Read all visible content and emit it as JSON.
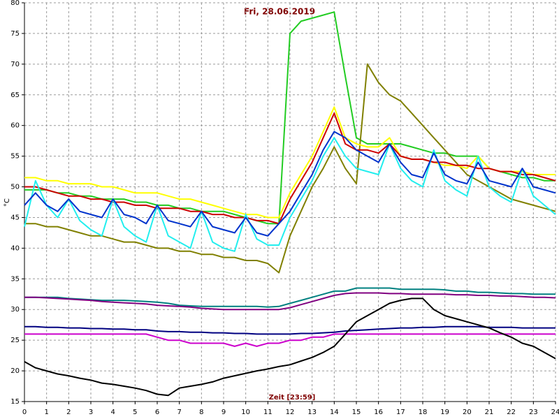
{
  "chart_data": {
    "type": "line",
    "title": "Fri, 28.06.2019",
    "y_label": "°C",
    "x_label": "Zeit [23:59]",
    "grid": true,
    "xlim": [
      0,
      24
    ],
    "xticks": [
      0,
      1,
      2,
      3,
      4,
      5,
      6,
      7,
      8,
      9,
      10,
      11,
      12,
      13,
      14,
      15,
      16,
      17,
      18,
      19,
      20,
      21,
      22,
      23,
      24
    ],
    "ylim": [
      15,
      80
    ],
    "yticks": [
      15,
      20,
      25,
      30,
      35,
      40,
      45,
      50,
      55,
      60,
      65,
      70,
      75,
      80
    ],
    "x": [
      0,
      0.5,
      1,
      1.5,
      2,
      2.5,
      3,
      3.5,
      4,
      4.5,
      5,
      5.5,
      6,
      6.5,
      7,
      7.5,
      8,
      8.5,
      9,
      9.5,
      10,
      10.5,
      11,
      11.5,
      12,
      12.5,
      13,
      13.5,
      14,
      14.5,
      15,
      15.5,
      16,
      16.5,
      17,
      17.5,
      18,
      18.5,
      19,
      19.5,
      20,
      20.5,
      21,
      21.5,
      22,
      22.5,
      23,
      23.5,
      24
    ],
    "series": [
      {
        "color": "#22cc22",
        "values": [
          49.5,
          49.5,
          49.5,
          49,
          49,
          48.5,
          48.5,
          48,
          48,
          48,
          47.5,
          47.5,
          47,
          47,
          46.5,
          46.5,
          46,
          46,
          46,
          45.5,
          45,
          44.5,
          44,
          44,
          75,
          77,
          77.5,
          78,
          78.5,
          68,
          58,
          57,
          57,
          57,
          57,
          56.5,
          56,
          55.5,
          55.5,
          55,
          55,
          55,
          53,
          52.5,
          52,
          51.5,
          51.5,
          51,
          51
        ]
      },
      {
        "color": "#808000",
        "values": [
          44,
          44,
          43.5,
          43.5,
          43,
          42.5,
          42,
          42,
          41.5,
          41,
          41,
          40.5,
          40,
          40,
          39.5,
          39.5,
          39,
          39,
          38.5,
          38.5,
          38,
          38,
          37.5,
          36,
          42,
          46,
          50,
          53,
          56.5,
          53,
          50.5,
          70,
          67,
          65,
          64,
          62,
          60,
          58,
          56,
          54,
          52,
          51,
          50,
          49,
          48,
          47.5,
          47,
          46.5,
          46
        ]
      },
      {
        "color": "#ffff00",
        "values": [
          51.5,
          51.5,
          51,
          51,
          50.5,
          50.5,
          50.5,
          50,
          50,
          49.5,
          49,
          49,
          49,
          48.5,
          48,
          48,
          47.5,
          47,
          46.5,
          46,
          45.5,
          45.5,
          45,
          45,
          49,
          52,
          55,
          59,
          63,
          58,
          57,
          56.5,
          56.5,
          58,
          55,
          54.5,
          54.5,
          54,
          53.5,
          53.5,
          53,
          55,
          53,
          52.5,
          52.5,
          52.5,
          52,
          52,
          52
        ]
      },
      {
        "color": "#cc0000",
        "values": [
          50,
          50,
          49.5,
          49,
          48.5,
          48.5,
          48,
          48,
          47.5,
          47.5,
          47,
          47,
          46.5,
          46.5,
          46.5,
          46,
          46,
          45.5,
          45.5,
          45,
          45,
          44.5,
          44.5,
          44,
          48,
          51,
          54,
          58,
          62,
          57,
          56,
          56,
          55.5,
          57,
          55,
          54.5,
          54.5,
          54,
          54,
          53.5,
          53.5,
          53,
          53,
          52.5,
          52.5,
          52,
          52,
          51.5,
          51
        ]
      },
      {
        "color": "#22eeee",
        "values": [
          43.5,
          51,
          47,
          45,
          48,
          44.5,
          43,
          42,
          48,
          43.5,
          42,
          41,
          47,
          42,
          41,
          40,
          46,
          41,
          40,
          39.5,
          45.5,
          41.5,
          40.5,
          40.5,
          45,
          48,
          51,
          55,
          58,
          55,
          53,
          52.5,
          52,
          57,
          53,
          51,
          50,
          56,
          51,
          49.5,
          48.5,
          55,
          50,
          48.5,
          47.5,
          53,
          48.5,
          47,
          45.5
        ]
      },
      {
        "color": "#0033cc",
        "values": [
          47,
          49,
          47,
          46,
          48,
          46,
          45.5,
          45,
          48,
          45.5,
          45,
          44,
          47,
          44.5,
          44,
          43.5,
          46,
          43.5,
          43,
          42.5,
          45,
          42.5,
          42,
          44,
          46,
          49,
          52,
          56,
          59,
          58,
          56,
          55,
          54,
          57,
          54,
          52,
          51.5,
          55.5,
          52,
          51,
          50.5,
          54,
          51,
          50.5,
          50,
          53,
          50,
          49.5,
          49
        ]
      },
      {
        "color": "#008080",
        "values": [
          32,
          32,
          32,
          32,
          31.8,
          31.7,
          31.6,
          31.5,
          31.5,
          31.5,
          31.4,
          31.3,
          31.2,
          31,
          30.7,
          30.6,
          30.5,
          30.5,
          30.5,
          30.5,
          30.5,
          30.5,
          30.4,
          30.5,
          31,
          31.5,
          32,
          32.5,
          33,
          33,
          33.5,
          33.5,
          33.5,
          33.5,
          33.3,
          33.3,
          33.3,
          33.3,
          33.2,
          33,
          33,
          32.8,
          32.8,
          32.7,
          32.6,
          32.6,
          32.5,
          32.5,
          32.5
        ]
      },
      {
        "color": "#800080",
        "values": [
          32,
          32,
          31.9,
          31.8,
          31.7,
          31.6,
          31.5,
          31.3,
          31.2,
          31.1,
          31,
          30.9,
          30.7,
          30.6,
          30.5,
          30.4,
          30.2,
          30.1,
          30,
          30,
          30,
          30,
          30,
          30,
          30.3,
          30.8,
          31.3,
          31.8,
          32.3,
          32.6,
          32.7,
          32.7,
          32.7,
          32.6,
          32.6,
          32.5,
          32.5,
          32.5,
          32.5,
          32.4,
          32.4,
          32.3,
          32.3,
          32.2,
          32.2,
          32.1,
          32,
          32,
          31.9
        ]
      },
      {
        "color": "#000080",
        "values": [
          27.2,
          27.2,
          27.1,
          27.1,
          27,
          27,
          26.9,
          26.9,
          26.8,
          26.8,
          26.7,
          26.7,
          26.5,
          26.4,
          26.4,
          26.3,
          26.3,
          26.2,
          26.2,
          26.1,
          26.1,
          26,
          26,
          26,
          26,
          26.1,
          26.1,
          26.2,
          26.3,
          26.5,
          26.6,
          26.7,
          26.8,
          26.9,
          27,
          27,
          27.1,
          27.1,
          27.2,
          27.2,
          27.2,
          27.2,
          27.1,
          27.1,
          27.1,
          27,
          27,
          27,
          27
        ]
      },
      {
        "color": "#cc00cc",
        "values": [
          26,
          26,
          26,
          26,
          26,
          26,
          26,
          26,
          26,
          26,
          26,
          26,
          25.5,
          25,
          25,
          24.5,
          24.5,
          24.5,
          24.5,
          24,
          24.5,
          24,
          24.5,
          24.5,
          25,
          25,
          25.5,
          25.5,
          26,
          26,
          26,
          26,
          26,
          26,
          26,
          26,
          26,
          26,
          26,
          26,
          26,
          26,
          26,
          26,
          26,
          26,
          26,
          26,
          26
        ]
      },
      {
        "color": "#000000",
        "values": [
          21.5,
          20.5,
          20,
          19.5,
          19.2,
          18.8,
          18.5,
          18,
          17.8,
          17.5,
          17.2,
          16.8,
          16.2,
          16,
          17.2,
          17.5,
          17.8,
          18.2,
          18.8,
          19.2,
          19.6,
          20,
          20.3,
          20.7,
          21,
          21.6,
          22.2,
          23,
          24,
          26,
          28,
          29,
          30,
          31,
          31.5,
          31.8,
          31.8,
          30,
          29,
          28.5,
          28,
          27.5,
          27,
          26.2,
          25.5,
          24.5,
          24,
          23,
          22
        ]
      }
    ]
  }
}
